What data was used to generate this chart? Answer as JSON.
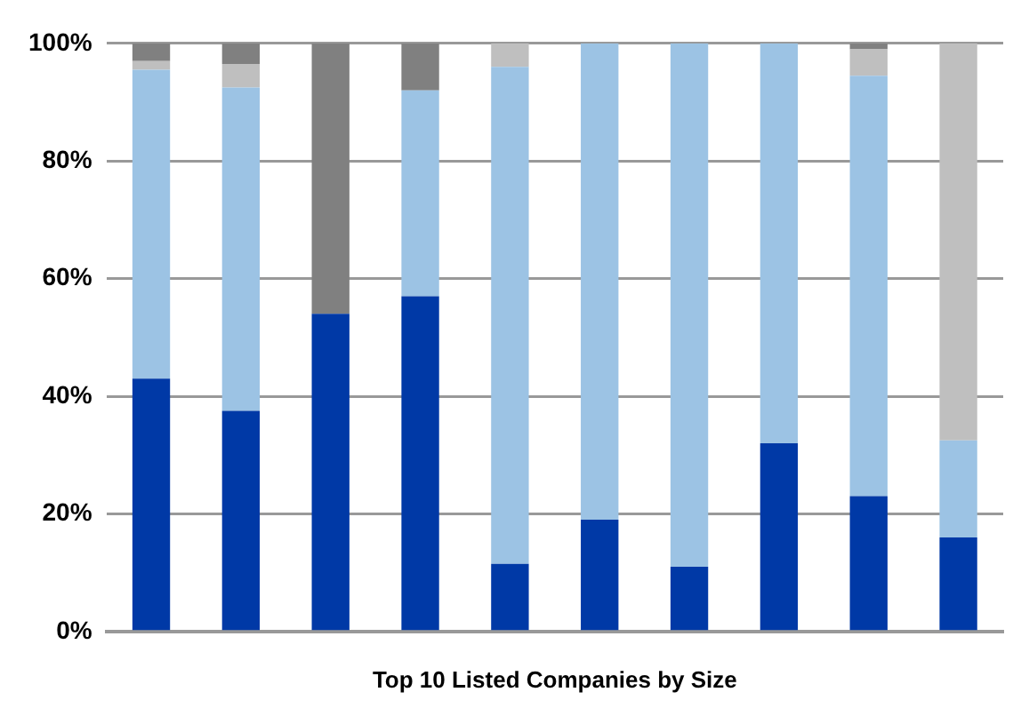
{
  "chart_data": {
    "type": "bar",
    "stacked": true,
    "xlabel": "Top 10 Listed Companies by Size",
    "categories": [
      null,
      null,
      null,
      null,
      null,
      null,
      null,
      null,
      null,
      null
    ],
    "series": [
      {
        "color": "#0039a6",
        "values": [
          43,
          37.5,
          54,
          57,
          11.5,
          19,
          11,
          32,
          23,
          16
        ]
      },
      {
        "color": "#9cc3e4",
        "values": [
          52.5,
          55,
          0,
          35,
          84.5,
          81,
          89,
          68,
          71.5,
          16.5
        ]
      },
      {
        "color": "#bfbfbf",
        "values": [
          1.5,
          4,
          0,
          0,
          4,
          0,
          0,
          0,
          4.5,
          67.5
        ]
      },
      {
        "color": "#808080",
        "values": [
          3,
          3.5,
          46,
          8,
          0,
          0,
          0,
          0,
          1,
          0
        ]
      }
    ],
    "ylim": [
      0,
      100
    ],
    "yticks": [
      {
        "value": 0,
        "label": "0%"
      },
      {
        "value": 20,
        "label": "20%"
      },
      {
        "value": 40,
        "label": "40%"
      },
      {
        "value": 60,
        "label": "60%"
      },
      {
        "value": 80,
        "label": "80%"
      },
      {
        "value": 100,
        "label": "100%"
      }
    ],
    "grid": "y",
    "tick_labels": "y"
  }
}
